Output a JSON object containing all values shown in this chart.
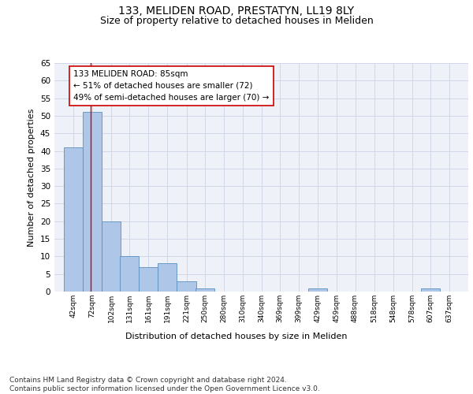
{
  "title_line1": "133, MELIDEN ROAD, PRESTATYN, LL19 8LY",
  "title_line2": "Size of property relative to detached houses in Meliden",
  "xlabel": "Distribution of detached houses by size in Meliden",
  "ylabel": "Number of detached properties",
  "bin_labels": [
    "42sqm",
    "72sqm",
    "102sqm",
    "131sqm",
    "161sqm",
    "191sqm",
    "221sqm",
    "250sqm",
    "280sqm",
    "310sqm",
    "340sqm",
    "369sqm",
    "399sqm",
    "429sqm",
    "459sqm",
    "488sqm",
    "518sqm",
    "548sqm",
    "578sqm",
    "607sqm",
    "637sqm"
  ],
  "bin_edges": [
    42,
    72,
    102,
    131,
    161,
    191,
    221,
    250,
    280,
    310,
    340,
    369,
    399,
    429,
    459,
    488,
    518,
    548,
    578,
    607,
    637
  ],
  "bar_values": [
    41,
    51,
    20,
    10,
    7,
    8,
    3,
    1,
    0,
    0,
    0,
    0,
    0,
    1,
    0,
    0,
    0,
    0,
    0,
    1,
    0
  ],
  "bar_color": "#aec6e8",
  "bar_edge_color": "#5a8fc0",
  "property_line_x": 85,
  "property_line_color": "#cc0000",
  "annotation_text": "133 MELIDEN ROAD: 85sqm\n← 51% of detached houses are smaller (72)\n49% of semi-detached houses are larger (70) →",
  "annotation_box_color": "#ffffff",
  "annotation_box_edge_color": "#cc0000",
  "ylim": [
    0,
    65
  ],
  "yticks": [
    0,
    5,
    10,
    15,
    20,
    25,
    30,
    35,
    40,
    45,
    50,
    55,
    60,
    65
  ],
  "grid_color": "#d0d8e8",
  "background_color": "#eef2f8",
  "footer_text": "Contains HM Land Registry data © Crown copyright and database right 2024.\nContains public sector information licensed under the Open Government Licence v3.0.",
  "title_fontsize": 10,
  "subtitle_fontsize": 9,
  "annotation_fontsize": 7.5,
  "footer_fontsize": 6.5,
  "ylabel_fontsize": 8,
  "xlabel_fontsize": 8,
  "ytick_fontsize": 7.5,
  "xtick_fontsize": 6.5
}
